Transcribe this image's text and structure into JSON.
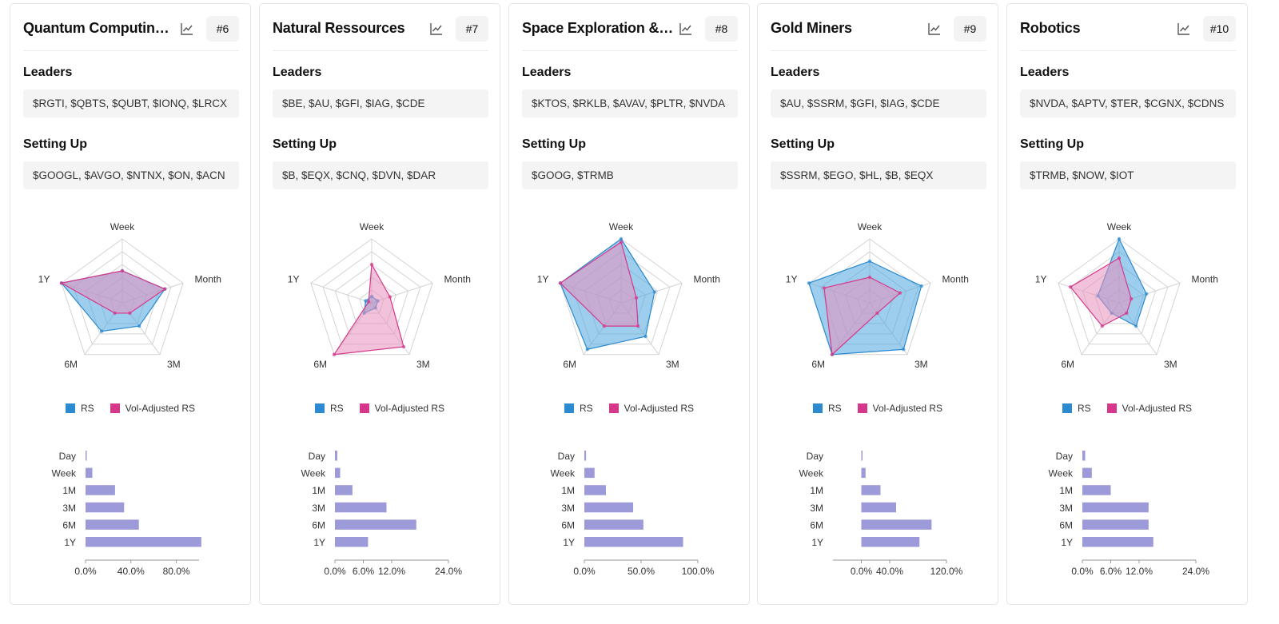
{
  "legend": {
    "rs": "RS",
    "vol": "Vol-Adjusted RS"
  },
  "colors": {
    "rs_fill": "#4ea6de",
    "rs_stroke": "#2b8ad0",
    "vol_fill": "#e78fbd",
    "vol_stroke": "#d6378a",
    "bar": "#9d9ad9",
    "grid": "#d4d4d4",
    "swatch_rs": "#2b8ad0",
    "swatch_vol": "#d6378a"
  },
  "cards": [
    {
      "title": "Quantum Computing ...",
      "rank": "#6",
      "leaders_label": "Leaders",
      "leaders": "$RGTI, $QBTS, $QUBT, $IONQ, $LRCX",
      "setting_label": "Setting Up",
      "setting": "$GOOGL, $AVGO, $NTNX, $ON, $ACN",
      "chart_data": [
        {
          "type": "radar",
          "axes": [
            "Week",
            "Month",
            "3M",
            "6M",
            "1Y"
          ],
          "range": [
            0,
            1
          ],
          "series": [
            {
              "name": "RS",
              "values": [
                0.5,
                0.7,
                0.45,
                0.55,
                1.0
              ]
            },
            {
              "name": "Vol-Adjusted RS",
              "values": [
                0.5,
                0.7,
                0.2,
                0.2,
                1.0
              ]
            }
          ]
        },
        {
          "type": "bar",
          "orientation": "horizontal",
          "categories": [
            "Day",
            "Week",
            "1M",
            "3M",
            "6M",
            "1Y"
          ],
          "values": [
            1,
            6,
            26,
            34,
            47,
            102
          ],
          "xlim": [
            0,
            100
          ],
          "ticks": [
            0,
            40,
            80
          ],
          "tick_labels": [
            "0.0%",
            "40.0%",
            "80.0%"
          ]
        }
      ]
    },
    {
      "title": "Natural Ressources",
      "rank": "#7",
      "leaders_label": "Leaders",
      "leaders": "$BE, $AU, $GFI, $IAG, $CDE",
      "setting_label": "Setting Up",
      "setting": "$B, $EQX, $CNQ, $DVN, $DAR",
      "chart_data": [
        {
          "type": "radar",
          "axes": [
            "Week",
            "Month",
            "3M",
            "6M",
            "1Y"
          ],
          "range": [
            0,
            1
          ],
          "series": [
            {
              "name": "RS",
              "values": [
                0.1,
                0.1,
                0.1,
                0.2,
                0.1
              ]
            },
            {
              "name": "Vol-Adjusted RS",
              "values": [
                0.6,
                0.3,
                0.85,
                1.0,
                0.05
              ]
            }
          ]
        },
        {
          "type": "bar",
          "orientation": "horizontal",
          "categories": [
            "Day",
            "Week",
            "1M",
            "3M",
            "6M",
            "1Y"
          ],
          "values": [
            0.5,
            1.1,
            3.7,
            10.9,
            17.2,
            7.0
          ],
          "xlim": [
            0,
            24
          ],
          "ticks": [
            0,
            6,
            12,
            24
          ],
          "tick_labels": [
            "0.0%",
            "6.0%",
            "12.0%",
            "24.0%"
          ]
        }
      ]
    },
    {
      "title": "Space Exploration & I...",
      "rank": "#8",
      "leaders_label": "Leaders",
      "leaders": "$KTOS, $RKLB, $AVAV, $PLTR, $NVDA",
      "setting_label": "Setting Up",
      "setting": "$GOOG, $TRMB",
      "chart_data": [
        {
          "type": "radar",
          "axes": [
            "Week",
            "Month",
            "3M",
            "6M",
            "1Y"
          ],
          "range": [
            0,
            1
          ],
          "series": [
            {
              "name": "RS",
              "values": [
                1.0,
                0.55,
                0.65,
                0.9,
                1.0
              ]
            },
            {
              "name": "Vol-Adjusted RS",
              "values": [
                0.95,
                0.25,
                0.45,
                0.45,
                1.0
              ]
            }
          ]
        },
        {
          "type": "bar",
          "orientation": "horizontal",
          "categories": [
            "Day",
            "Week",
            "1M",
            "3M",
            "6M",
            "1Y"
          ],
          "values": [
            1.5,
            9,
            19,
            43,
            52,
            87
          ],
          "xlim": [
            0,
            100
          ],
          "ticks": [
            0,
            50,
            100
          ],
          "tick_labels": [
            "0.0%",
            "50.0%",
            "100.0%"
          ]
        }
      ]
    },
    {
      "title": "Gold Miners",
      "rank": "#9",
      "leaders_label": "Leaders",
      "leaders": "$AU, $SSRM, $GFI, $IAG, $CDE",
      "setting_label": "Setting Up",
      "setting": "$SSRM, $EGO, $HL, $B, $EQX",
      "chart_data": [
        {
          "type": "radar",
          "axes": [
            "Week",
            "Month",
            "3M",
            "6M",
            "1Y"
          ],
          "range": [
            0,
            1
          ],
          "series": [
            {
              "name": "RS",
              "values": [
                0.65,
                0.85,
                0.9,
                1.0,
                1.0
              ]
            },
            {
              "name": "Vol-Adjusted RS",
              "values": [
                0.4,
                0.5,
                0.2,
                1.0,
                0.75
              ]
            }
          ]
        },
        {
          "type": "bar",
          "orientation": "horizontal",
          "categories": [
            "Day",
            "Week",
            "1M",
            "3M",
            "6M",
            "1Y"
          ],
          "values": [
            0.3,
            6,
            27,
            49,
            99,
            82
          ],
          "xlim": [
            -40,
            120
          ],
          "ticks": [
            0,
            40,
            120
          ],
          "tick_labels": [
            "0.0%",
            "40.0%",
            "120.0%"
          ]
        }
      ]
    },
    {
      "title": "Robotics",
      "rank": "#10",
      "leaders_label": "Leaders",
      "leaders": "$NVDA, $APTV, $TER, $CGNX, $CDNS",
      "setting_label": "Setting Up",
      "setting": "$TRMB, $NOW, $IOT",
      "chart_data": [
        {
          "type": "radar",
          "axes": [
            "Week",
            "Month",
            "3M",
            "6M",
            "1Y"
          ],
          "range": [
            0,
            1
          ],
          "series": [
            {
              "name": "RS",
              "values": [
                1.0,
                0.45,
                0.45,
                0.2,
                0.35
              ]
            },
            {
              "name": "Vol-Adjusted RS",
              "values": [
                0.7,
                0.2,
                0.2,
                0.45,
                0.8
              ]
            }
          ]
        },
        {
          "type": "bar",
          "orientation": "horizontal",
          "categories": [
            "Day",
            "Week",
            "1M",
            "3M",
            "6M",
            "1Y"
          ],
          "values": [
            0.6,
            2.0,
            6.0,
            14.0,
            14.0,
            15.0
          ],
          "xlim": [
            0,
            24
          ],
          "ticks": [
            0,
            6,
            12,
            24
          ],
          "tick_labels": [
            "0.0%",
            "6.0%",
            "12.0%",
            "24.0%"
          ]
        }
      ]
    }
  ]
}
